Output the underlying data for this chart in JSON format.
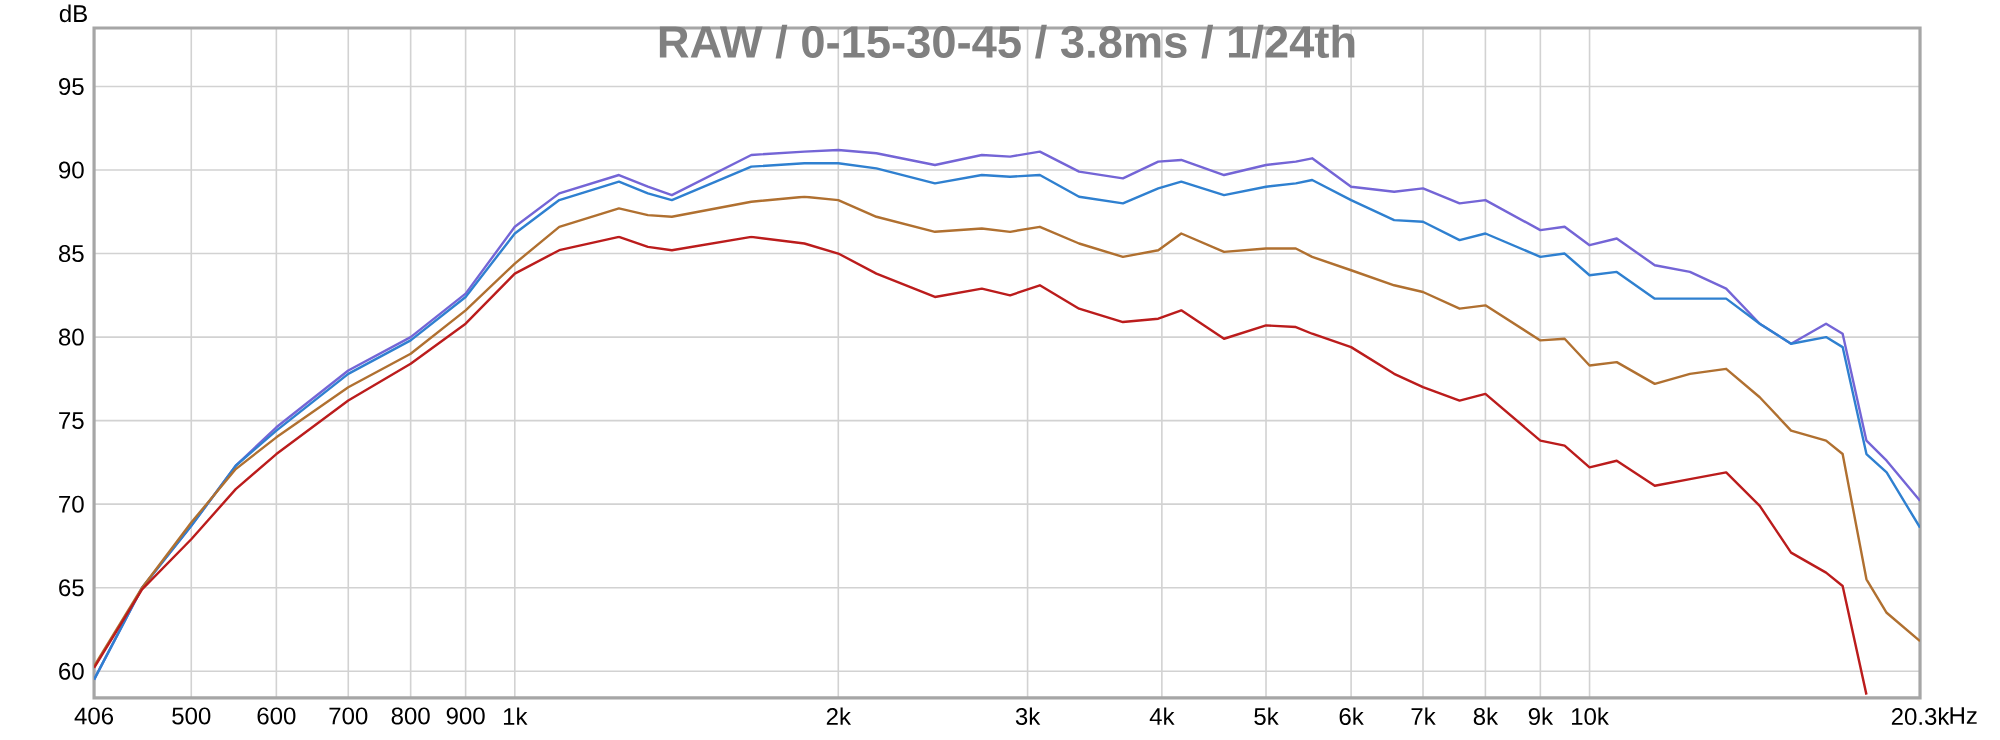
{
  "chart_data": {
    "type": "line",
    "title": "RAW / 0-15-30-45 / 3.8ms / 1/24th",
    "ylabel": "dB",
    "xlabel": "Hz",
    "x": [
      406,
      450,
      500,
      550,
      600,
      700,
      800,
      900,
      1000,
      1100,
      1250,
      1330,
      1400,
      1660,
      1860,
      2000,
      2170,
      2460,
      2720,
      2890,
      3080,
      3350,
      3680,
      3970,
      4170,
      4570,
      5000,
      5330,
      5520,
      6000,
      6580,
      7000,
      7570,
      8000,
      9000,
      9480,
      10000,
      10600,
      11500,
      12400,
      13400,
      14400,
      15400,
      16600,
      17200,
      18100,
      18900,
      20300
    ],
    "series": [
      {
        "color": "#7465d6",
        "values": [
          59.5,
          65,
          68.7,
          72.3,
          74.6,
          78.0,
          80.0,
          82.6,
          86.6,
          88.6,
          89.7,
          89.0,
          88.5,
          90.9,
          91.1,
          91.2,
          91.0,
          90.3,
          90.9,
          90.8,
          91.1,
          89.9,
          89.5,
          90.5,
          90.6,
          89.7,
          90.3,
          90.5,
          90.7,
          89.0,
          88.7,
          88.9,
          88.0,
          88.2,
          86.4,
          86.6,
          85.5,
          85.9,
          84.3,
          83.9,
          82.9,
          80.8,
          79.6,
          80.8,
          80.2,
          73.8,
          72.6,
          70.2
        ]
      },
      {
        "color": "#2f80d0",
        "values": [
          59.5,
          65,
          68.7,
          72.3,
          74.4,
          77.8,
          79.8,
          82.4,
          86.2,
          88.2,
          89.3,
          88.6,
          88.2,
          90.2,
          90.4,
          90.4,
          90.1,
          89.2,
          89.7,
          89.6,
          89.7,
          88.4,
          88.0,
          88.9,
          89.3,
          88.5,
          89.0,
          89.2,
          89.4,
          88.2,
          87.0,
          86.9,
          85.8,
          86.2,
          84.8,
          85.0,
          83.7,
          83.9,
          82.3,
          82.3,
          82.3,
          80.8,
          79.6,
          80.0,
          79.4,
          73.0,
          71.9,
          68.6
        ]
      },
      {
        "color": "#b07030",
        "values": [
          60.3,
          65,
          68.9,
          72.1,
          74.0,
          77.0,
          79.0,
          81.6,
          84.4,
          86.6,
          87.7,
          87.3,
          87.2,
          88.1,
          88.4,
          88.2,
          87.2,
          86.3,
          86.5,
          86.3,
          86.6,
          85.6,
          84.8,
          85.2,
          86.2,
          85.1,
          85.3,
          85.3,
          84.8,
          84.0,
          83.1,
          82.7,
          81.7,
          81.9,
          79.8,
          79.9,
          78.3,
          78.5,
          77.2,
          77.8,
          78.1,
          76.4,
          74.4,
          73.8,
          73.0,
          65.5,
          63.5,
          61.8
        ]
      },
      {
        "color": "#bb1c1c",
        "values": [
          60.2,
          64.9,
          67.9,
          70.9,
          73.0,
          76.2,
          78.4,
          80.8,
          83.8,
          85.2,
          86.0,
          85.4,
          85.2,
          86.0,
          85.6,
          85.0,
          83.8,
          82.4,
          82.9,
          82.5,
          83.1,
          81.7,
          80.9,
          81.1,
          81.6,
          79.9,
          80.7,
          80.6,
          80.2,
          79.4,
          77.8,
          77.0,
          76.2,
          76.6,
          73.8,
          73.5,
          72.2,
          72.6,
          71.1,
          71.5,
          71.9,
          69.9,
          67.1,
          65.9,
          65.1,
          58.6,
          null,
          null
        ]
      }
    ],
    "log": "x",
    "grid": true,
    "xlim": [
      406,
      20300
    ],
    "ylim": [
      58.4,
      98.5
    ],
    "xticks": [
      406,
      500,
      600,
      700,
      800,
      900,
      {
        "value": 1000,
        "label": "1k"
      },
      {
        "value": 2000,
        "label": "2k"
      },
      {
        "value": 3000,
        "label": "3k"
      },
      {
        "value": 4000,
        "label": "4k"
      },
      {
        "value": 5000,
        "label": "5k"
      },
      {
        "value": 6000,
        "label": "6k"
      },
      {
        "value": 7000,
        "label": "7k"
      },
      {
        "value": 8000,
        "label": "8k"
      },
      {
        "value": 9000,
        "label": "9k"
      },
      {
        "value": 10000,
        "label": "10k"
      },
      {
        "value": 20300,
        "label": "20.3k"
      }
    ],
    "yticks": [
      60,
      65,
      70,
      75,
      80,
      85,
      90,
      95
    ]
  }
}
